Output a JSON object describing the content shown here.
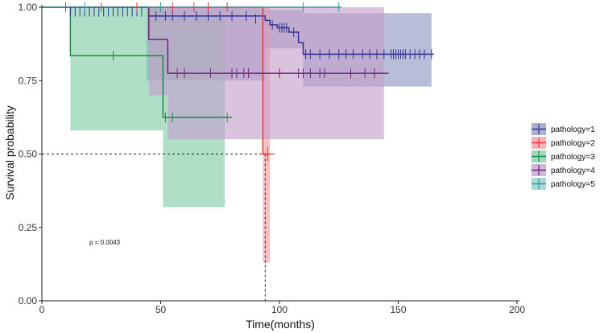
{
  "chart_data": {
    "type": "line",
    "title": "",
    "xlabel": "Time(months)",
    "ylabel": "Survival probability",
    "xlim": [
      0,
      200
    ],
    "ylim": [
      0,
      1
    ],
    "x_ticks": [
      0,
      50,
      100,
      150,
      200
    ],
    "y_ticks": [
      0.0,
      0.25,
      0.5,
      0.75,
      1.0
    ],
    "x_tick_labels": [
      "0",
      "50",
      "100",
      "150",
      "200"
    ],
    "y_tick_labels": [
      "0.00",
      "0.25",
      "0.50",
      "0.75",
      "1.00"
    ],
    "annotation": "p = 0.0043",
    "annotation_pos": {
      "x": 20,
      "y": 0.2
    },
    "median_line": {
      "y": 0.5,
      "x_end": 94
    },
    "legend_position": "right",
    "series": [
      {
        "name": "pathology=1",
        "color": "#323292",
        "fill": "#8e95c0",
        "steps": [
          [
            0,
            1.0
          ],
          [
            45,
            0.97
          ],
          [
            94,
            0.955
          ],
          [
            96,
            0.94
          ],
          [
            99,
            0.93
          ],
          [
            104,
            0.915
          ],
          [
            108,
            0.88
          ],
          [
            110,
            0.84
          ],
          [
            165,
            0.84
          ]
        ],
        "ci_steps": [
          [
            44,
            0.75,
            1.0
          ],
          [
            94,
            0.86,
            0.99
          ],
          [
            110,
            0.73,
            0.98
          ],
          [
            164,
            0.73,
            0.98
          ]
        ],
        "censors": [
          [
            12,
            0.985
          ],
          [
            14,
            0.985
          ],
          [
            16,
            0.985
          ],
          [
            18,
            0.985
          ],
          [
            20,
            0.985
          ],
          [
            22,
            0.985
          ],
          [
            24,
            0.985
          ],
          [
            26,
            0.985
          ],
          [
            28,
            0.985
          ],
          [
            30,
            0.985
          ],
          [
            32,
            0.985
          ],
          [
            34,
            0.985
          ],
          [
            36,
            0.985
          ],
          [
            38,
            0.985
          ],
          [
            40,
            0.985
          ],
          [
            42,
            0.985
          ],
          [
            48,
            0.97
          ],
          [
            52,
            0.97
          ],
          [
            55,
            0.97
          ],
          [
            60,
            0.97
          ],
          [
            65,
            0.97
          ],
          [
            70,
            0.97
          ],
          [
            75,
            0.97
          ],
          [
            80,
            0.97
          ],
          [
            86,
            0.97
          ],
          [
            90,
            0.96
          ],
          [
            97,
            0.94
          ],
          [
            100,
            0.93
          ],
          [
            101,
            0.93
          ],
          [
            102,
            0.93
          ],
          [
            103,
            0.93
          ],
          [
            106,
            0.915
          ],
          [
            111,
            0.84
          ],
          [
            113,
            0.84
          ],
          [
            117,
            0.84
          ],
          [
            121,
            0.84
          ],
          [
            125,
            0.84
          ],
          [
            128,
            0.84
          ],
          [
            131,
            0.84
          ],
          [
            135,
            0.84
          ],
          [
            138,
            0.84
          ],
          [
            141,
            0.84
          ],
          [
            144,
            0.84
          ],
          [
            147,
            0.84
          ],
          [
            148,
            0.84
          ],
          [
            149,
            0.84
          ],
          [
            150,
            0.84
          ],
          [
            151,
            0.84
          ],
          [
            152,
            0.84
          ],
          [
            153,
            0.84
          ],
          [
            155,
            0.84
          ],
          [
            157,
            0.84
          ],
          [
            159,
            0.84
          ],
          [
            161,
            0.84
          ],
          [
            164,
            0.84
          ]
        ]
      },
      {
        "name": "pathology=2",
        "color": "#e8383c",
        "fill": "#f59a9e",
        "steps": [
          [
            0,
            1.0
          ],
          [
            93,
            1.0
          ],
          [
            93,
            0.5
          ],
          [
            96,
            0.5
          ]
        ],
        "ci_steps": [
          [
            93,
            0.13,
            1.0
          ],
          [
            96,
            0.13,
            1.0
          ]
        ],
        "censors": [
          [
            10,
            1.0
          ],
          [
            25,
            1.0
          ],
          [
            40,
            1.0
          ],
          [
            55,
            1.0
          ],
          [
            64,
            1.0
          ],
          [
            70,
            1.0
          ],
          [
            78,
            1.0
          ],
          [
            95,
            0.5
          ]
        ]
      },
      {
        "name": "pathology=3",
        "color": "#1b8a4a",
        "fill": "#7fcca7",
        "steps": [
          [
            0,
            1.0
          ],
          [
            12,
            1.0
          ],
          [
            12,
            0.835
          ],
          [
            51,
            0.835
          ],
          [
            51,
            0.625
          ],
          [
            80,
            0.625
          ]
        ],
        "ci_steps": [
          [
            12,
            0.58,
            1.0
          ],
          [
            51,
            0.32,
            0.97
          ],
          [
            77,
            0.32,
            0.97
          ]
        ],
        "censors": [
          [
            30,
            0.835
          ],
          [
            52,
            0.625
          ],
          [
            55,
            0.625
          ],
          [
            78,
            0.625
          ]
        ]
      },
      {
        "name": "pathology=4",
        "color": "#6a2874",
        "fill": "#c39ecc",
        "steps": [
          [
            0,
            1.0
          ],
          [
            45,
            1.0
          ],
          [
            45,
            0.89
          ],
          [
            53,
            0.89
          ],
          [
            53,
            0.775
          ],
          [
            146,
            0.775
          ]
        ],
        "ci_steps": [
          [
            45,
            0.7,
            1.0
          ],
          [
            53,
            0.55,
            1.0
          ],
          [
            144,
            0.55,
            1.0
          ]
        ],
        "censors": [
          [
            57,
            0.775
          ],
          [
            60,
            0.775
          ],
          [
            71,
            0.775
          ],
          [
            80,
            0.775
          ],
          [
            82,
            0.775
          ],
          [
            85,
            0.775
          ],
          [
            87,
            0.775
          ],
          [
            100,
            0.775
          ],
          [
            108,
            0.775
          ],
          [
            110,
            0.775
          ],
          [
            113,
            0.775
          ],
          [
            117,
            0.775
          ],
          [
            119,
            0.775
          ],
          [
            130,
            0.775
          ],
          [
            136,
            0.775
          ],
          [
            140,
            0.775
          ]
        ]
      },
      {
        "name": "pathology=5",
        "color": "#2f9a9a",
        "fill": "#93cbcb",
        "steps": [
          [
            0,
            1.0
          ],
          [
            126,
            1.0
          ]
        ],
        "ci_steps": [],
        "censors": [
          [
            18,
            1.0
          ],
          [
            50,
            1.0
          ],
          [
            110,
            1.0
          ],
          [
            125,
            1.0
          ]
        ]
      }
    ]
  }
}
